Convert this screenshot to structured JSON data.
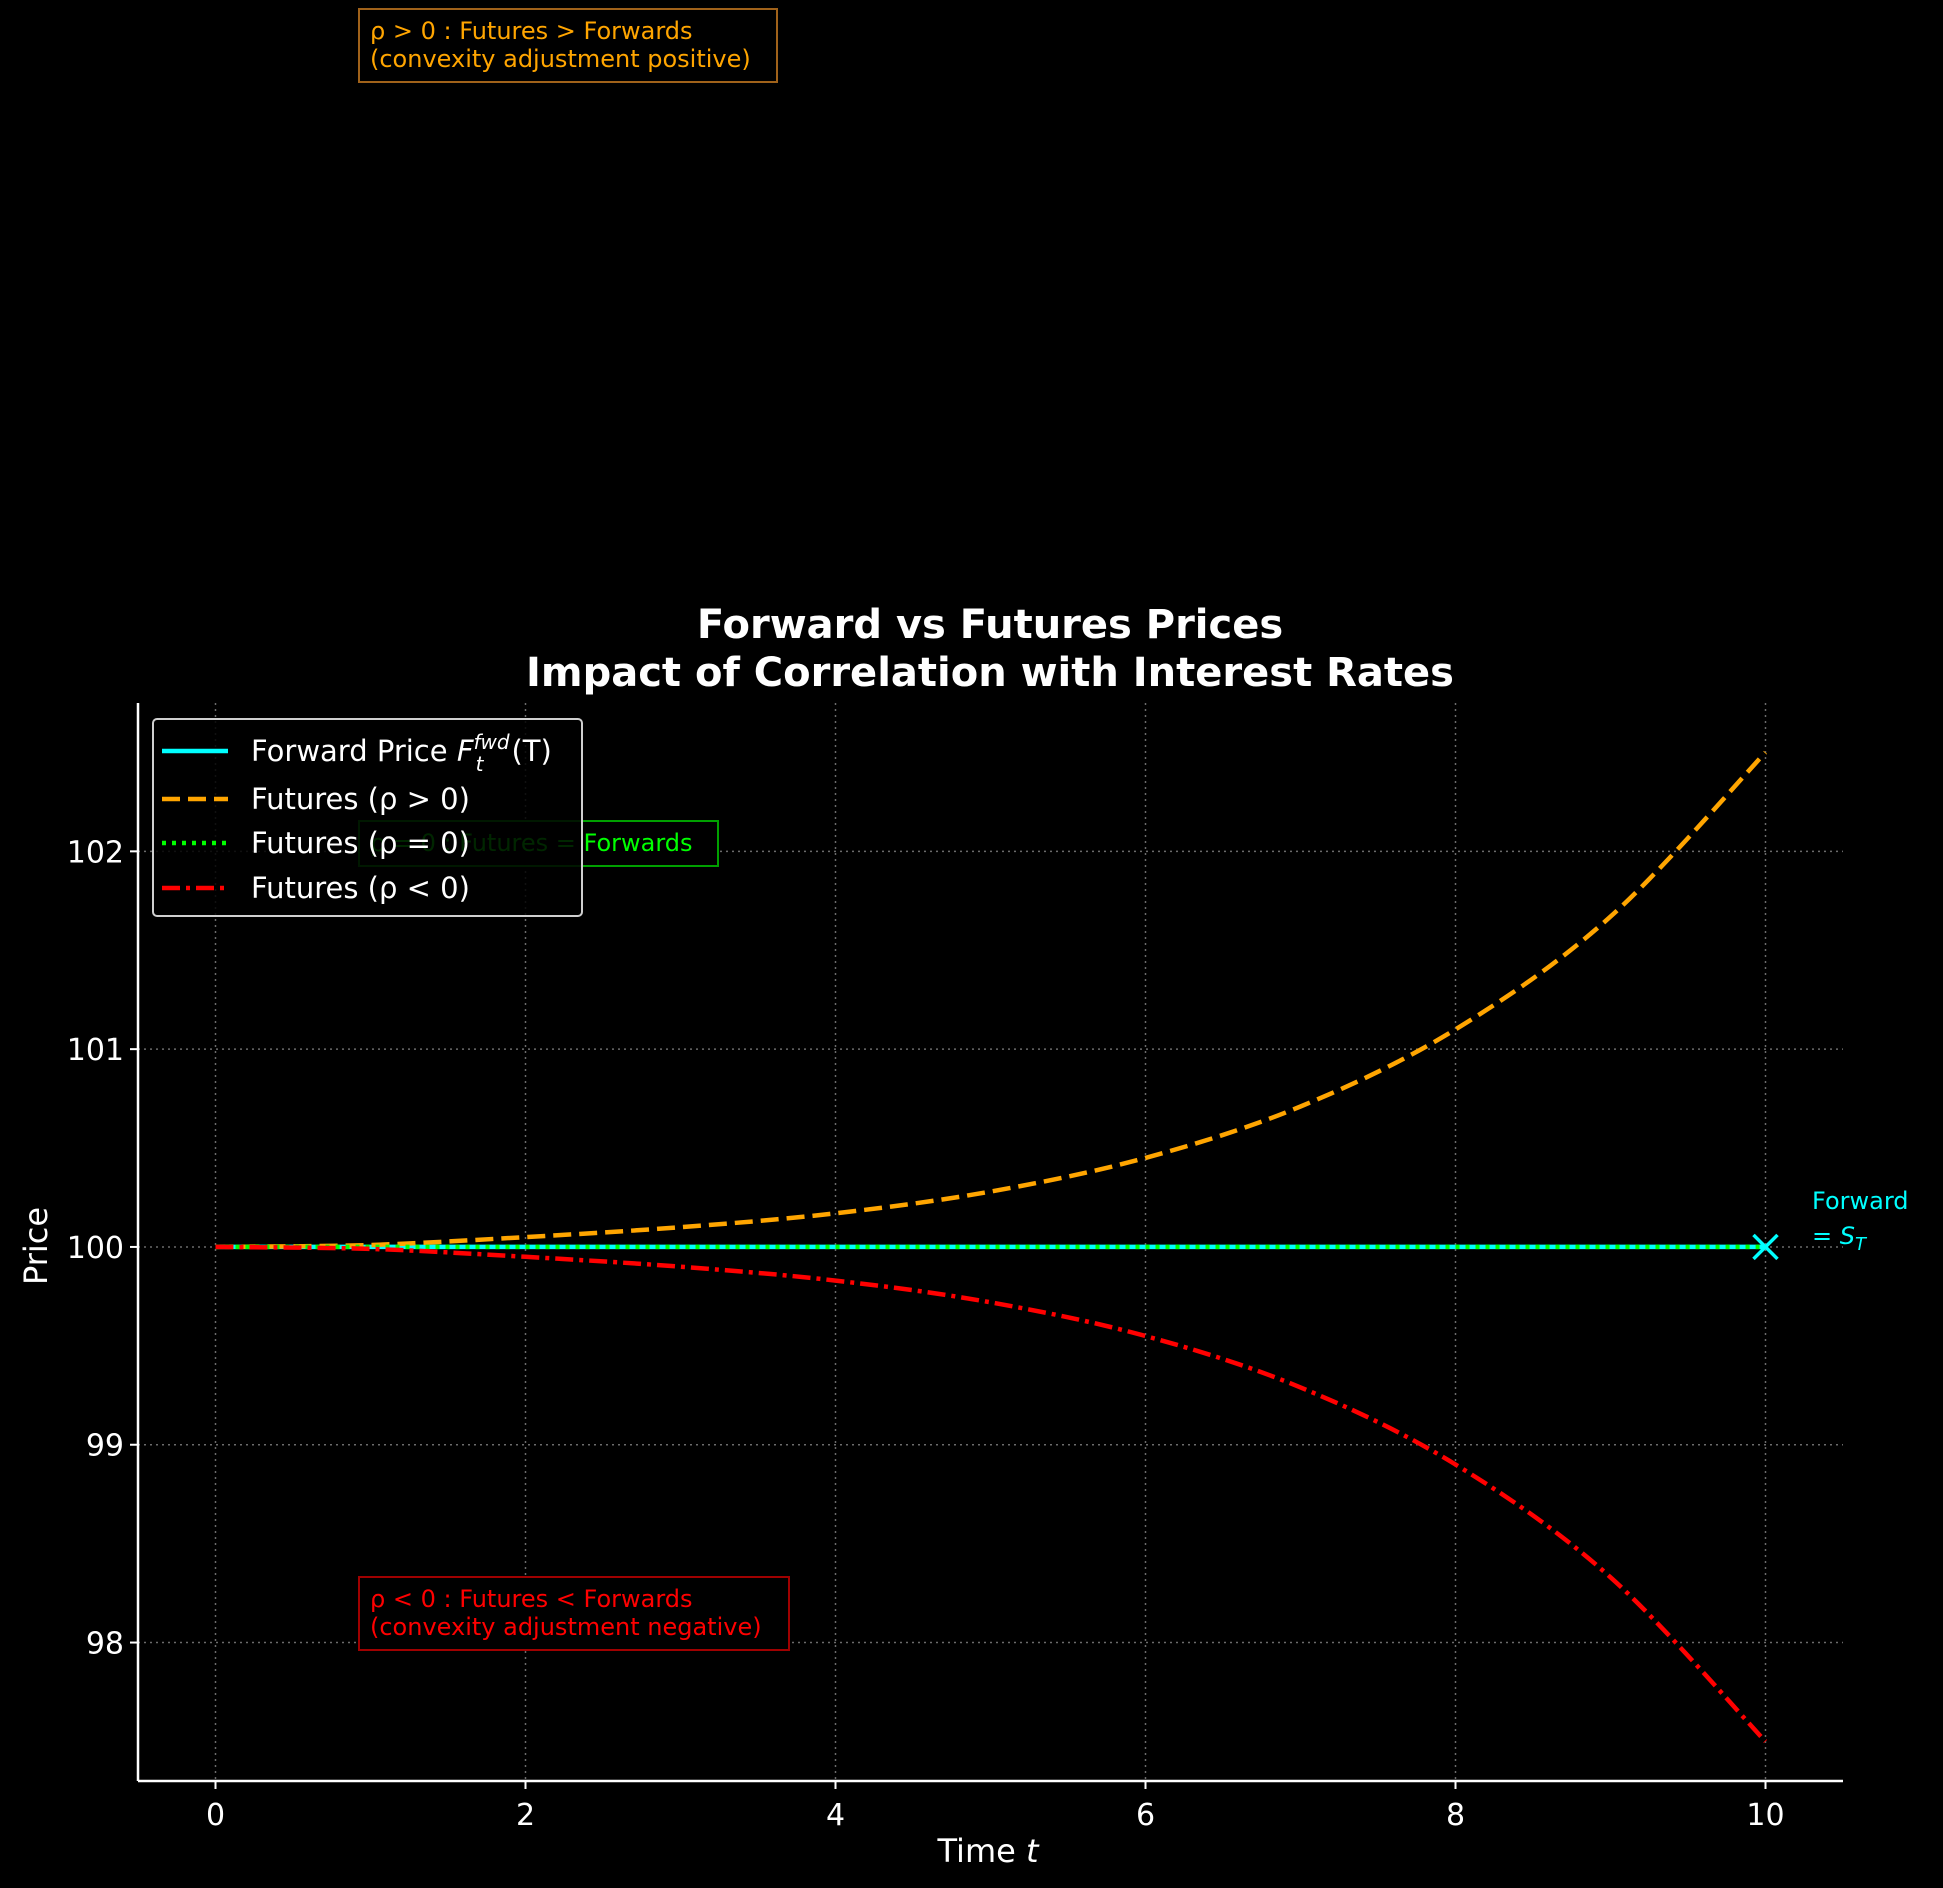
{
  "chart_data": {
    "type": "line",
    "title_line1": "Forward vs Futures Prices",
    "title_line2": "Impact of Correlation with Interest Rates",
    "xlabel_text": "Time ",
    "xlabel_var": "t",
    "ylabel": "Price",
    "xlim": [
      -0.5,
      10.5
    ],
    "ylim": [
      97.3,
      102.75
    ],
    "xticks": [
      0,
      2,
      4,
      6,
      8,
      10
    ],
    "yticks": [
      98,
      99,
      100,
      101,
      102
    ],
    "grid": true,
    "legend_position": "top-left",
    "series": [
      {
        "key": "forward",
        "name": "Forward Price F_t^fwd(T)",
        "legend_main": "Forward Price ",
        "legend_F": "F",
        "legend_sub": "t",
        "legend_sup": "fwd",
        "legend_tail": "(T)",
        "color": "#00ffff",
        "style": "solid",
        "x": [
          0,
          1,
          2,
          3,
          4,
          5,
          6,
          7,
          8,
          9,
          10
        ],
        "y": [
          100,
          100,
          100,
          100,
          100,
          100,
          100,
          100,
          100,
          100,
          100
        ]
      },
      {
        "key": "pos",
        "name": "Futures (ρ > 0)",
        "color": "#ffa500",
        "style": "dashed",
        "x": [
          0,
          1,
          2,
          3,
          4,
          5,
          6,
          7,
          8,
          9,
          10
        ],
        "y": [
          100,
          100.01,
          100.05,
          100.1,
          100.17,
          100.28,
          100.45,
          100.71,
          101.1,
          101.67,
          102.5
        ]
      },
      {
        "key": "zero",
        "name": "Futures (ρ = 0)",
        "color": "#00ff00",
        "style": "dotted",
        "x": [
          0,
          1,
          2,
          3,
          4,
          5,
          6,
          7,
          8,
          9,
          10
        ],
        "y": [
          100,
          100,
          100,
          100,
          100,
          100,
          100,
          100,
          100,
          100,
          100
        ]
      },
      {
        "key": "neg",
        "name": "Futures (ρ < 0)",
        "color": "#ff0000",
        "style": "dashdot",
        "x": [
          0,
          1,
          2,
          3,
          4,
          5,
          6,
          7,
          8,
          9,
          10
        ],
        "y": [
          100,
          99.99,
          99.95,
          99.9,
          99.83,
          99.72,
          99.55,
          99.29,
          98.9,
          98.33,
          97.5
        ]
      }
    ],
    "annotations": {
      "positive_box": {
        "line1": "ρ > 0 : Futures > Forwards",
        "line2": "(convexity adjustment positive)",
        "color": "#ffa500",
        "border": "#a0621a"
      },
      "zero_box": {
        "text": "ρ = 0 : Futures = Forwards",
        "color": "#00ff00",
        "border": "#00a000"
      },
      "negative_box": {
        "line1": "ρ < 0 : Futures < Forwards",
        "line2": "(convexity adjustment negative)",
        "color": "#ff0000",
        "border": "#a00000"
      },
      "end_marker": {
        "x": 10,
        "y": 100,
        "label_line1": "Forward",
        "label_line2_prefix": "= ",
        "label_S": "S",
        "label_sub": "T",
        "color": "#00ffff"
      }
    }
  }
}
